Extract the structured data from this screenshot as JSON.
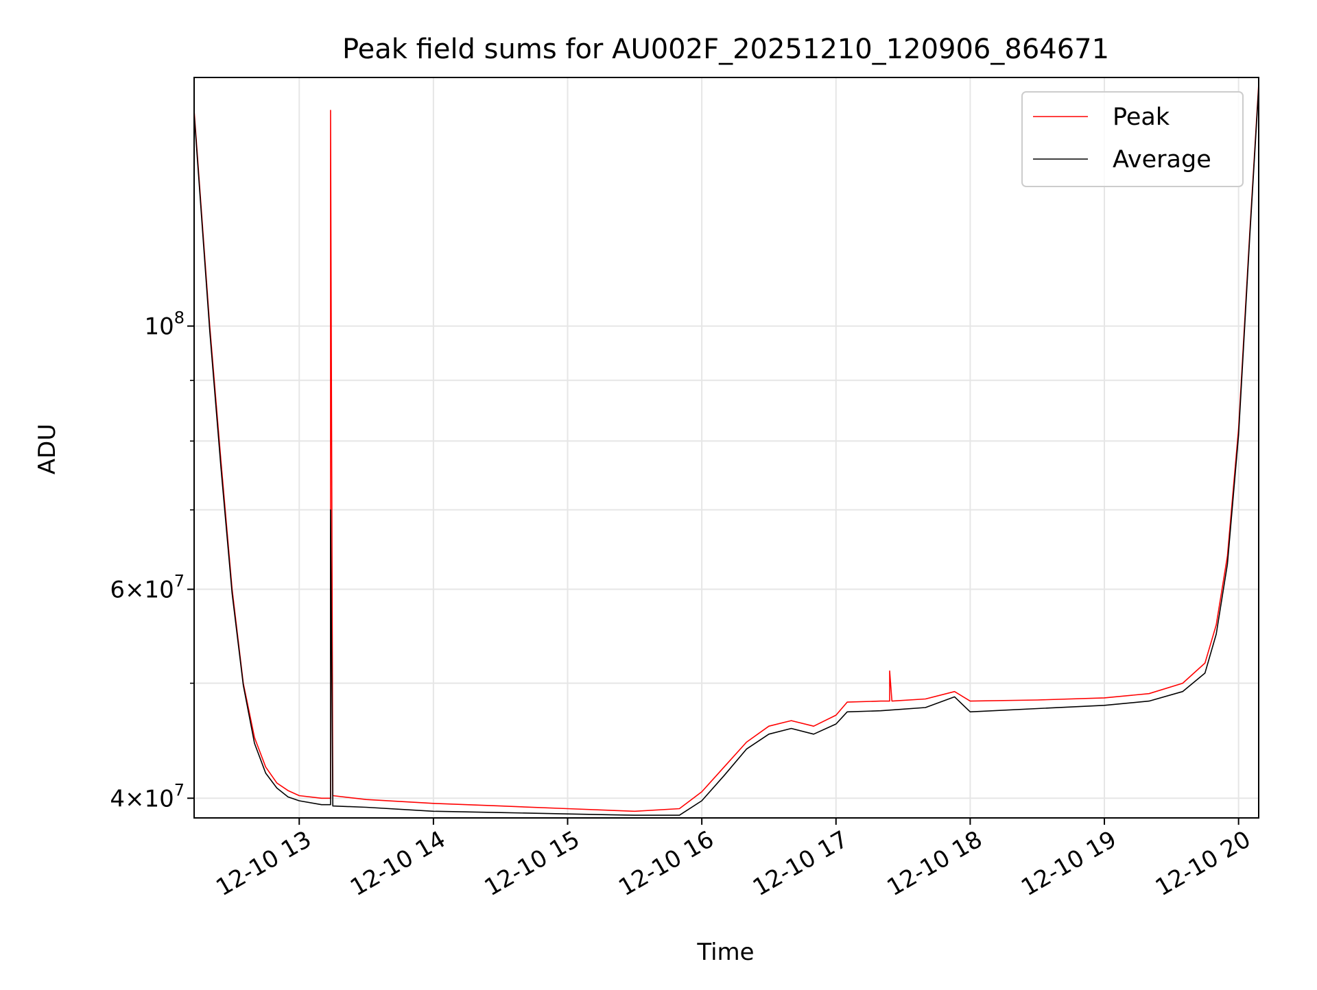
{
  "chart_data": {
    "type": "line",
    "title": "Peak field sums for AU002F_20251210_120906_864671",
    "xlabel": "Time",
    "ylabel": "ADU",
    "y_scale": "log",
    "xlim": [
      "2025-12-10 12:13",
      "2025-12-10 20:09"
    ],
    "ylim": [
      38500000,
      162000000
    ],
    "grid": true,
    "legend": "top-right",
    "x_ticks": [
      {
        "value": "2025-12-10 13:00",
        "label": "12-10 13"
      },
      {
        "value": "2025-12-10 14:00",
        "label": "12-10 14"
      },
      {
        "value": "2025-12-10 15:00",
        "label": "12-10 15"
      },
      {
        "value": "2025-12-10 16:00",
        "label": "12-10 16"
      },
      {
        "value": "2025-12-10 17:00",
        "label": "12-10 17"
      },
      {
        "value": "2025-12-10 18:00",
        "label": "12-10 18"
      },
      {
        "value": "2025-12-10 19:00",
        "label": "12-10 19"
      },
      {
        "value": "2025-12-10 20:00",
        "label": "12-10 20"
      }
    ],
    "y_major_ticks": [
      {
        "value": 40000000,
        "base": "4×10",
        "exp": "7"
      },
      {
        "value": 60000000,
        "base": "6×10",
        "exp": "7"
      },
      {
        "value": 100000000,
        "base": "10",
        "exp": "8"
      }
    ],
    "y_minor_ticks": [
      50000000,
      70000000,
      80000000,
      90000000
    ],
    "series": [
      {
        "name": "Peak",
        "color": "#ff0000",
        "x": [
          "2025-12-10 12:13",
          "2025-12-10 12:16",
          "2025-12-10 12:20",
          "2025-12-10 12:25",
          "2025-12-10 12:30",
          "2025-12-10 12:35",
          "2025-12-10 12:40",
          "2025-12-10 12:45",
          "2025-12-10 12:50",
          "2025-12-10 12:55",
          "2025-12-10 13:00",
          "2025-12-10 13:10",
          "2025-12-10 13:14",
          "2025-12-10 13:14",
          "2025-12-10 13:15",
          "2025-12-10 13:30",
          "2025-12-10 14:00",
          "2025-12-10 14:30",
          "2025-12-10 15:00",
          "2025-12-10 15:30",
          "2025-12-10 15:50",
          "2025-12-10 16:00",
          "2025-12-10 16:10",
          "2025-12-10 16:20",
          "2025-12-10 16:30",
          "2025-12-10 16:40",
          "2025-12-10 16:50",
          "2025-12-10 17:00",
          "2025-12-10 17:05",
          "2025-12-10 17:20",
          "2025-12-10 17:24",
          "2025-12-10 17:24",
          "2025-12-10 17:25",
          "2025-12-10 17:40",
          "2025-12-10 17:53",
          "2025-12-10 18:00",
          "2025-12-10 18:30",
          "2025-12-10 19:00",
          "2025-12-10 19:20",
          "2025-12-10 19:35",
          "2025-12-10 19:45",
          "2025-12-10 19:50",
          "2025-12-10 19:55",
          "2025-12-10 20:00",
          "2025-12-10 20:05",
          "2025-12-10 20:09"
        ],
        "values": [
          152000000,
          127000000,
          100000000,
          77000000,
          60000000,
          50000000,
          45000000,
          42500000,
          41200000,
          40600000,
          40200000,
          40000000,
          40000000,
          152000000,
          40200000,
          39900000,
          39600000,
          39400000,
          39200000,
          39000000,
          39200000,
          40500000,
          42500000,
          44600000,
          46000000,
          46500000,
          46000000,
          47000000,
          48200000,
          48300000,
          48300000,
          51200000,
          48300000,
          48500000,
          49200000,
          48300000,
          48400000,
          48600000,
          49000000,
          50000000,
          52000000,
          56000000,
          64000000,
          82000000,
          120000000,
          160000000
        ]
      },
      {
        "name": "Average",
        "color": "#000000",
        "x": [
          "2025-12-10 12:13",
          "2025-12-10 12:16",
          "2025-12-10 12:20",
          "2025-12-10 12:25",
          "2025-12-10 12:30",
          "2025-12-10 12:35",
          "2025-12-10 12:40",
          "2025-12-10 12:45",
          "2025-12-10 12:50",
          "2025-12-10 12:55",
          "2025-12-10 13:00",
          "2025-12-10 13:10",
          "2025-12-10 13:14",
          "2025-12-10 13:14",
          "2025-12-10 13:15",
          "2025-12-10 13:30",
          "2025-12-10 14:00",
          "2025-12-10 14:30",
          "2025-12-10 15:00",
          "2025-12-10 15:30",
          "2025-12-10 15:50",
          "2025-12-10 16:00",
          "2025-12-10 16:10",
          "2025-12-10 16:20",
          "2025-12-10 16:30",
          "2025-12-10 16:40",
          "2025-12-10 16:50",
          "2025-12-10 17:00",
          "2025-12-10 17:05",
          "2025-12-10 17:20",
          "2025-12-10 17:40",
          "2025-12-10 17:53",
          "2025-12-10 18:00",
          "2025-12-10 18:30",
          "2025-12-10 19:00",
          "2025-12-10 19:20",
          "2025-12-10 19:35",
          "2025-12-10 19:45",
          "2025-12-10 19:50",
          "2025-12-10 19:55",
          "2025-12-10 20:00",
          "2025-12-10 20:05",
          "2025-12-10 20:09"
        ],
        "values": [
          151000000,
          126000000,
          99000000,
          76000000,
          59500000,
          49800000,
          44500000,
          42000000,
          40800000,
          40100000,
          39800000,
          39500000,
          39500000,
          70000000,
          39400000,
          39300000,
          39000000,
          38900000,
          38800000,
          38700000,
          38700000,
          39800000,
          41800000,
          44000000,
          45300000,
          45800000,
          45300000,
          46200000,
          47300000,
          47400000,
          47700000,
          48700000,
          47300000,
          47600000,
          47900000,
          48300000,
          49200000,
          51000000,
          55000000,
          63000000,
          81000000,
          119000000,
          159000000
        ]
      }
    ]
  }
}
